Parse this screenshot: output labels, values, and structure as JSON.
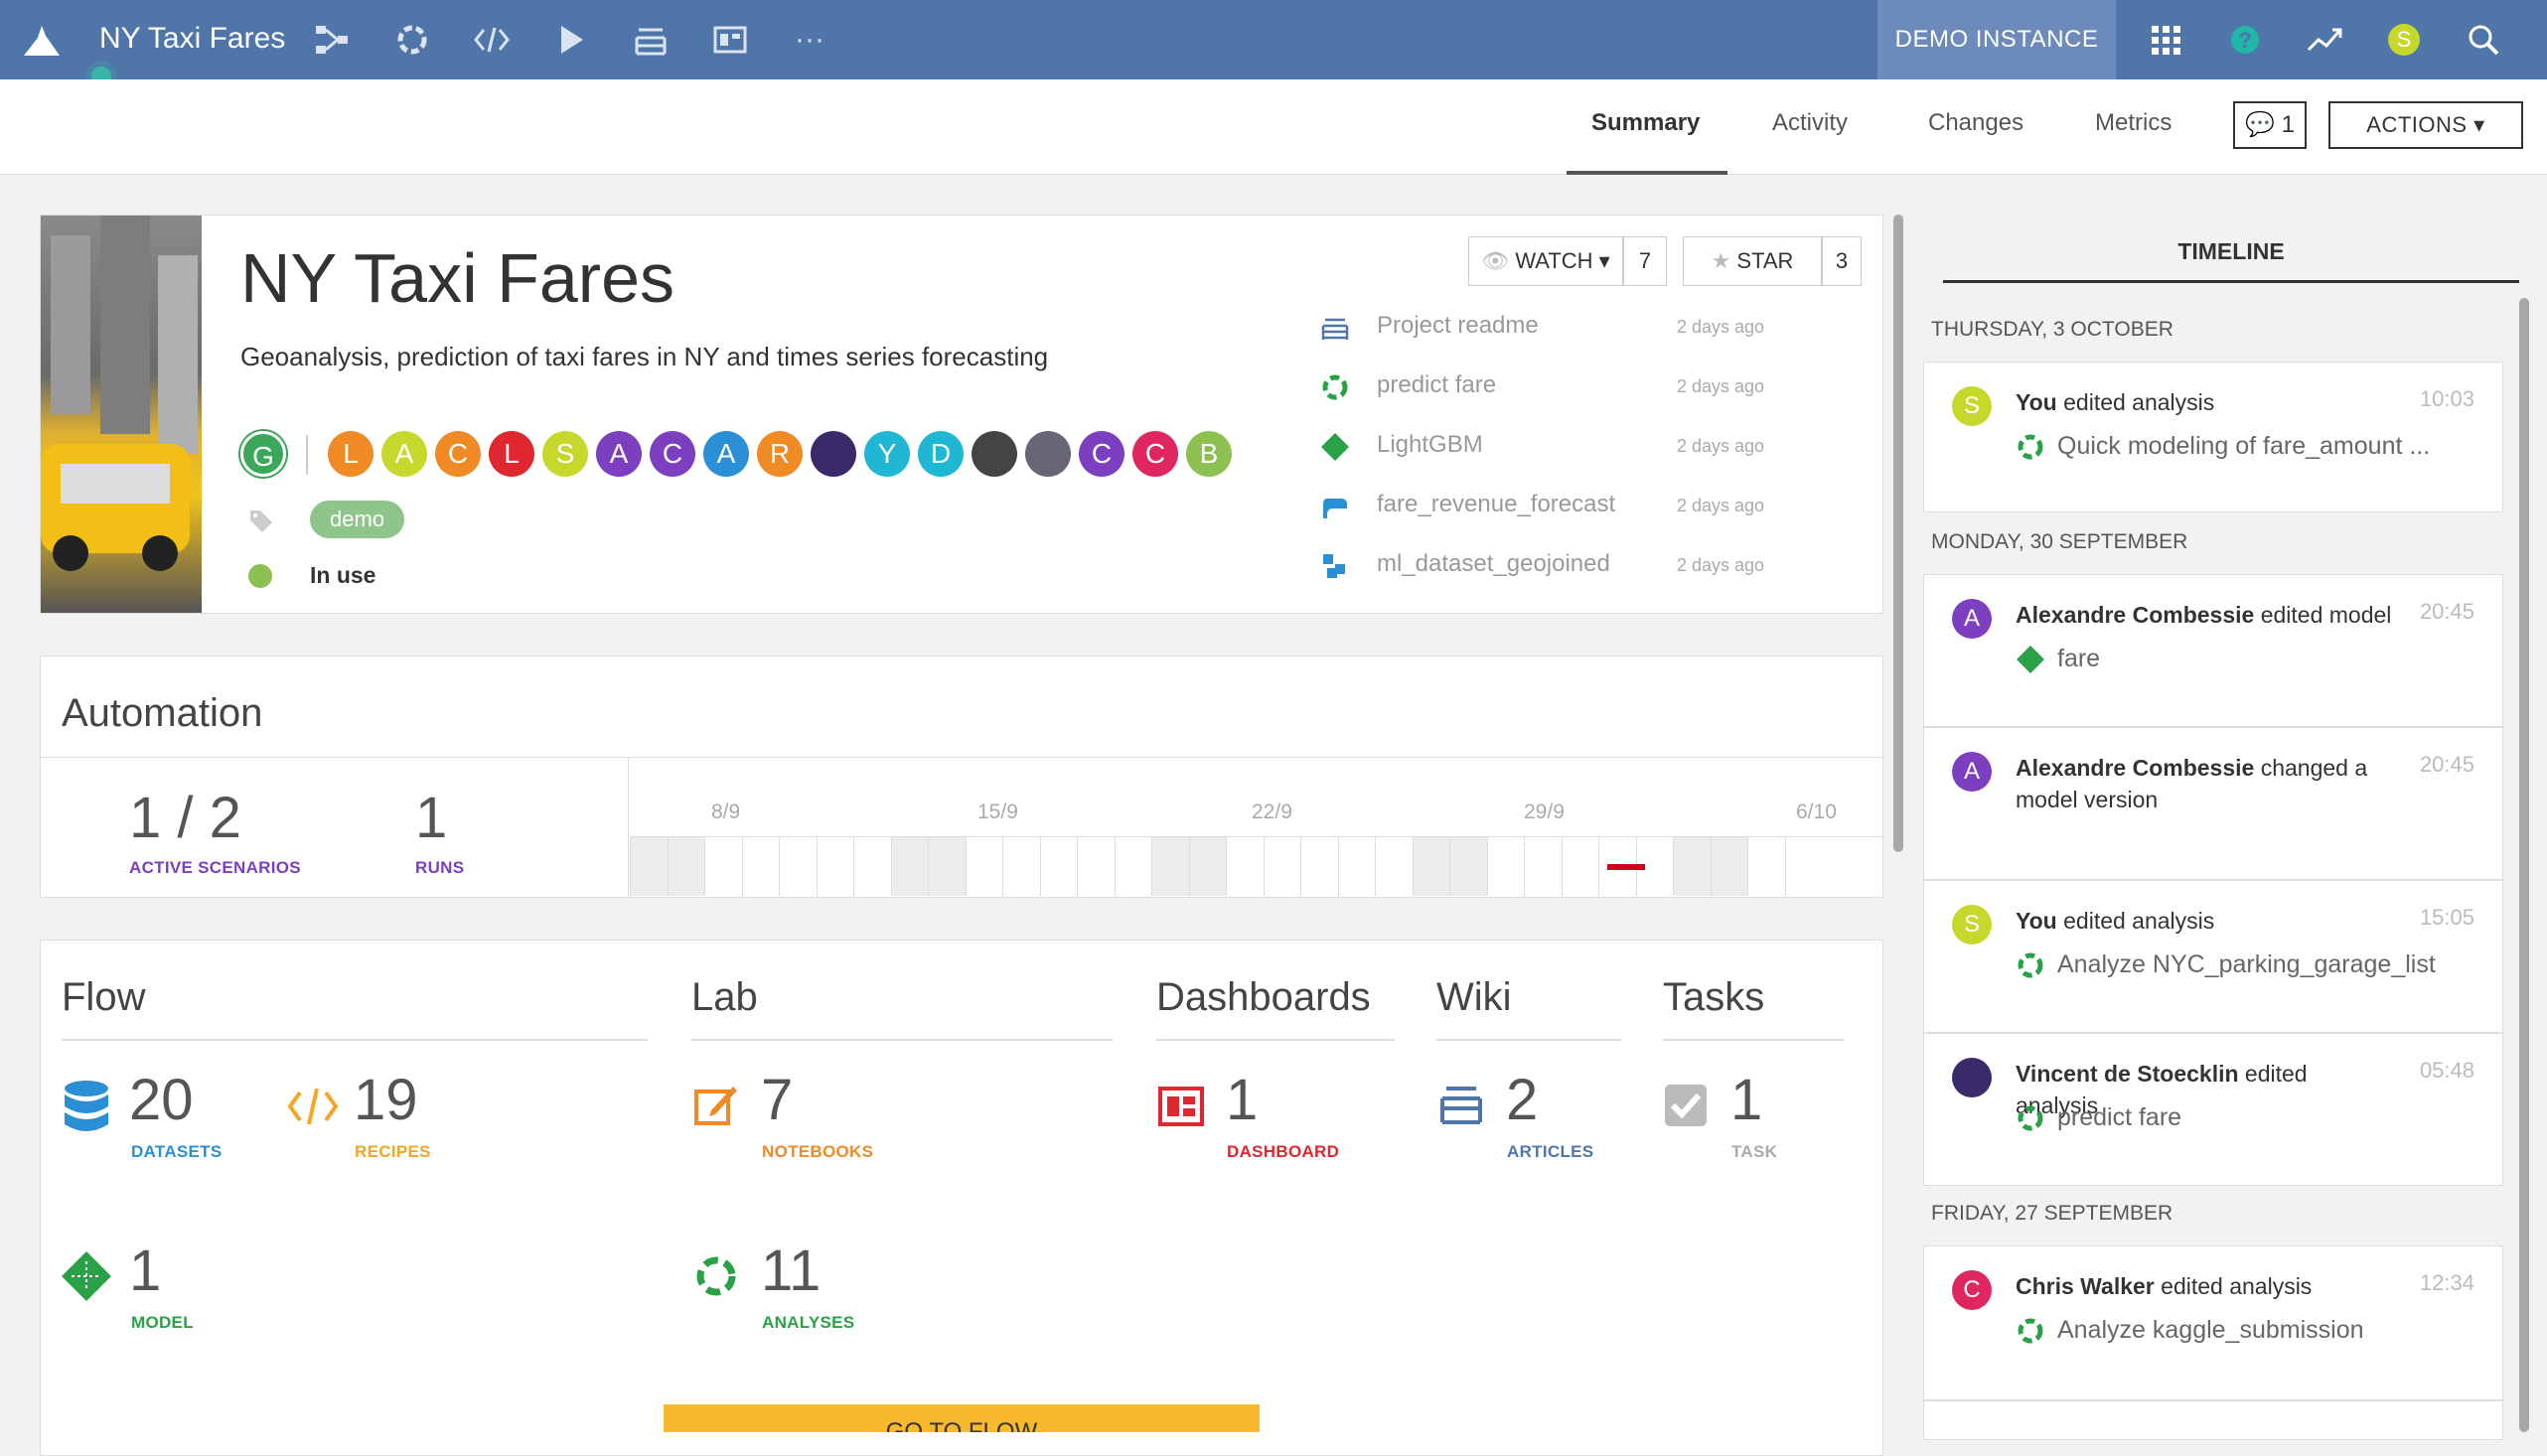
{
  "topbar": {
    "project_name": "NY Taxi Fares",
    "instance_label": "DEMO INSTANCE",
    "user_initial": "S"
  },
  "tabs": [
    {
      "label": "Summary"
    },
    {
      "label": "Activity"
    },
    {
      "label": "Changes"
    },
    {
      "label": "Metrics"
    }
  ],
  "discussion_count": "1",
  "actions_label": "ACTIONS",
  "project": {
    "title": "NY Taxi Fares",
    "description": "Geoanalysis, prediction of taxi fares in NY and times series forecasting",
    "owner_initial": "G",
    "contributors": [
      "L",
      "A",
      "C",
      "L",
      "S",
      "A",
      "C",
      "A",
      "R",
      "",
      "Y",
      "D",
      "",
      "",
      "C",
      "C",
      "B"
    ],
    "tag": "demo",
    "status": "In use",
    "watch_label": "WATCH",
    "watch_count": "7",
    "star_label": "STAR",
    "star_count": "3"
  },
  "recent_items": [
    {
      "name": "Project readme",
      "date": "2 days ago",
      "icon": "article-icon"
    },
    {
      "name": "predict fare",
      "date": "2 days ago",
      "icon": "analysis-icon"
    },
    {
      "name": "LightGBM",
      "date": "2 days ago",
      "icon": "model-icon"
    },
    {
      "name": "fare_revenue_forecast",
      "date": "2 days ago",
      "icon": "python-recipe-icon"
    },
    {
      "name": "ml_dataset_geojoined",
      "date": "2 days ago",
      "icon": "dataset-icon"
    }
  ],
  "automation": {
    "title": "Automation",
    "active_scenarios": "1 / 2",
    "active_scenarios_label": "ACTIVE SCENARIOS",
    "runs": "1",
    "runs_label": "RUNS",
    "dates": [
      "8/9",
      "15/9",
      "22/9",
      "29/9",
      "6/10"
    ]
  },
  "flow": {
    "title": "Flow",
    "datasets": "20",
    "datasets_label": "DATASETS",
    "recipes": "19",
    "recipes_label": "RECIPES",
    "models": "1",
    "models_label": "MODEL"
  },
  "lab": {
    "title": "Lab",
    "notebooks": "7",
    "notebooks_label": "NOTEBOOKS",
    "analyses": "11",
    "analyses_label": "ANALYSES"
  },
  "dashboards": {
    "title": "Dashboards",
    "count": "1",
    "label": "DASHBOARD"
  },
  "wiki": {
    "title": "Wiki",
    "count": "2",
    "label": "ARTICLES"
  },
  "tasks": {
    "title": "Tasks",
    "count": "1",
    "label": "TASK"
  },
  "go_to_flow_label": "GO TO FLOW",
  "timeline": {
    "title": "TIMELINE",
    "days": [
      {
        "label": "THURSDAY, 3 OCTOBER"
      },
      {
        "label": "MONDAY, 30 SEPTEMBER"
      },
      {
        "label": "FRIDAY, 27 SEPTEMBER"
      }
    ],
    "items": [
      {
        "initial": "S",
        "user": "You",
        "action": "edited analysis",
        "time": "10:03",
        "object": "Quick modeling of fare_amount ..."
      },
      {
        "initial": "A",
        "user": "Alexandre Combessie",
        "action": "edited model",
        "time": "20:45",
        "object": "fare"
      },
      {
        "initial": "A",
        "user": "Alexandre Combessie",
        "action": "changed a model version",
        "time": "20:45",
        "object": ""
      },
      {
        "initial": "S",
        "user": "You",
        "action": "edited analysis",
        "time": "15:05",
        "object": "Analyze NYC_parking_garage_list"
      },
      {
        "initial": "",
        "user": "Vincent de Stoecklin",
        "action": "edited analysis",
        "time": "05:48",
        "object": "predict fare"
      },
      {
        "initial": "C",
        "user": "Chris Walker",
        "action": "edited analysis",
        "time": "12:34",
        "object": "Analyze kaggle_submission"
      }
    ]
  }
}
